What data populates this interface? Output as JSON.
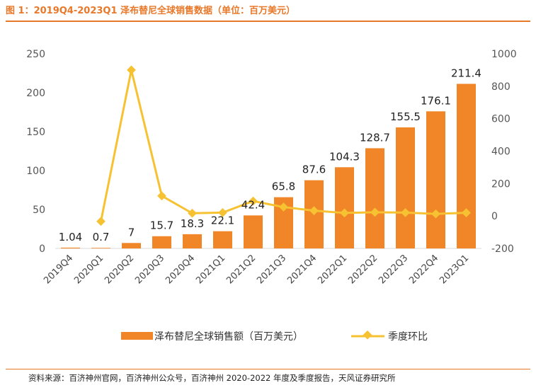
{
  "page": {
    "title": "图 1：2019Q4-2023Q1 泽布替尼全球销售数据（单位：百万美元）",
    "source": "资料来源：百济神州官网，百济神州公众号，百济神州 2020-2022 年度及季度报告，天风证券研究所"
  },
  "colors": {
    "accent": "#E8782A",
    "bar": "#F08628",
    "line": "#F7C232"
  },
  "chart_data": {
    "type": "bar",
    "categories": [
      "2019Q4",
      "2020Q1",
      "2020Q2",
      "2020Q3",
      "2020Q4",
      "2021Q1",
      "2021Q2",
      "2021Q3",
      "2021Q4",
      "2022Q1",
      "2022Q2",
      "2022Q3",
      "2022Q4",
      "2023Q1"
    ],
    "series": [
      {
        "name": "泽布替尼全球销售额（百万美元）",
        "type": "bar",
        "axis": "left",
        "values": [
          1.04,
          0.7,
          7,
          15.7,
          18.3,
          22.1,
          42.4,
          65.8,
          87.6,
          104.3,
          128.7,
          155.5,
          176.1,
          211.4
        ],
        "labels": [
          "1.04",
          "0.7",
          "7",
          "15.7",
          "18.3",
          "22.1",
          "42.4",
          "65.8",
          "87.6",
          "104.3",
          "128.7",
          "155.5",
          "176.1",
          "211.4"
        ]
      },
      {
        "name": "季度环比",
        "type": "line",
        "axis": "right",
        "values": [
          null,
          -33,
          900,
          124,
          17,
          21,
          92,
          55,
          33,
          19,
          23,
          21,
          13,
          20
        ]
      }
    ],
    "ylim_left": [
      0,
      250
    ],
    "yticks_left": [
      "0",
      "50",
      "100",
      "150",
      "200",
      "250"
    ],
    "ylim_right": [
      -200,
      1000
    ],
    "yticks_right": [
      "-200",
      "0",
      "200",
      "400",
      "600",
      "800",
      "1000"
    ],
    "legend": [
      "泽布替尼全球销售额（百万美元）",
      "季度环比"
    ],
    "legend_position": "bottom"
  }
}
